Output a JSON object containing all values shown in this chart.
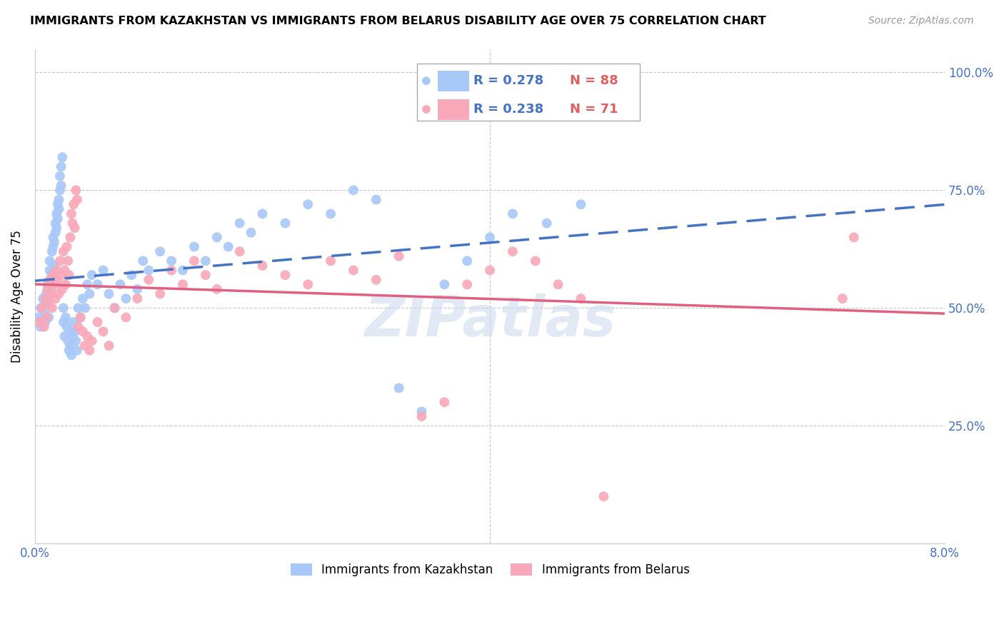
{
  "title": "IMMIGRANTS FROM KAZAKHSTAN VS IMMIGRANTS FROM BELARUS DISABILITY AGE OVER 75 CORRELATION CHART",
  "source": "Source: ZipAtlas.com",
  "ylabel": "Disability Age Over 75",
  "xmin": 0.0,
  "xmax": 0.08,
  "ymin": 0.0,
  "ymax": 1.05,
  "yticks": [
    0.0,
    0.25,
    0.5,
    0.75,
    1.0
  ],
  "ytick_labels": [
    "",
    "25.0%",
    "50.0%",
    "75.0%",
    "100.0%"
  ],
  "xticks": [
    0.0,
    0.02,
    0.04,
    0.06,
    0.08
  ],
  "xtick_labels": [
    "0.0%",
    "",
    "",
    "",
    "8.0%"
  ],
  "kazakhstan_color": "#a8c8f8",
  "belarus_color": "#f8a8b8",
  "kazakhstan_line_color": "#4472C4",
  "belarus_line_color": "#E06080",
  "R_kaz": 0.278,
  "N_kaz": 88,
  "R_bel": 0.238,
  "N_bel": 71,
  "kazakhstan_x": [
    0.0003,
    0.0005,
    0.0005,
    0.0007,
    0.0008,
    0.0009,
    0.001,
    0.001,
    0.0011,
    0.0012,
    0.0013,
    0.0013,
    0.0014,
    0.0014,
    0.0015,
    0.0015,
    0.0016,
    0.0016,
    0.0017,
    0.0017,
    0.0018,
    0.0018,
    0.0019,
    0.0019,
    0.002,
    0.002,
    0.0021,
    0.0021,
    0.0022,
    0.0022,
    0.0023,
    0.0023,
    0.0024,
    0.0025,
    0.0025,
    0.0026,
    0.0027,
    0.0028,
    0.0029,
    0.003,
    0.003,
    0.0031,
    0.0032,
    0.0033,
    0.0034,
    0.0035,
    0.0036,
    0.0037,
    0.0038,
    0.004,
    0.0042,
    0.0044,
    0.0046,
    0.0048,
    0.005,
    0.0055,
    0.006,
    0.0065,
    0.007,
    0.0075,
    0.008,
    0.0085,
    0.009,
    0.0095,
    0.01,
    0.011,
    0.012,
    0.013,
    0.014,
    0.015,
    0.016,
    0.017,
    0.018,
    0.019,
    0.02,
    0.022,
    0.024,
    0.026,
    0.028,
    0.03,
    0.032,
    0.034,
    0.036,
    0.038,
    0.04,
    0.042,
    0.045,
    0.048
  ],
  "kazakhstan_y": [
    0.48,
    0.5,
    0.46,
    0.52,
    0.49,
    0.47,
    0.53,
    0.51,
    0.55,
    0.48,
    0.6,
    0.58,
    0.56,
    0.54,
    0.62,
    0.57,
    0.65,
    0.63,
    0.59,
    0.64,
    0.68,
    0.66,
    0.7,
    0.67,
    0.72,
    0.69,
    0.73,
    0.71,
    0.75,
    0.78,
    0.76,
    0.8,
    0.82,
    0.5,
    0.47,
    0.44,
    0.48,
    0.46,
    0.43,
    0.41,
    0.45,
    0.42,
    0.4,
    0.44,
    0.47,
    0.45,
    0.43,
    0.41,
    0.5,
    0.48,
    0.52,
    0.5,
    0.55,
    0.53,
    0.57,
    0.55,
    0.58,
    0.53,
    0.5,
    0.55,
    0.52,
    0.57,
    0.54,
    0.6,
    0.58,
    0.62,
    0.6,
    0.58,
    0.63,
    0.6,
    0.65,
    0.63,
    0.68,
    0.66,
    0.7,
    0.68,
    0.72,
    0.7,
    0.75,
    0.73,
    0.33,
    0.28,
    0.55,
    0.6,
    0.65,
    0.7,
    0.68,
    0.72
  ],
  "belarus_x": [
    0.0004,
    0.0006,
    0.0008,
    0.0009,
    0.001,
    0.0011,
    0.0012,
    0.0013,
    0.0014,
    0.0015,
    0.0016,
    0.0017,
    0.0018,
    0.0019,
    0.002,
    0.0021,
    0.0022,
    0.0023,
    0.0024,
    0.0025,
    0.0026,
    0.0027,
    0.0028,
    0.0029,
    0.003,
    0.0031,
    0.0032,
    0.0033,
    0.0034,
    0.0035,
    0.0036,
    0.0037,
    0.0038,
    0.004,
    0.0042,
    0.0044,
    0.0046,
    0.0048,
    0.005,
    0.0055,
    0.006,
    0.0065,
    0.007,
    0.008,
    0.009,
    0.01,
    0.011,
    0.012,
    0.013,
    0.014,
    0.015,
    0.016,
    0.018,
    0.02,
    0.022,
    0.024,
    0.026,
    0.028,
    0.03,
    0.032,
    0.034,
    0.036,
    0.038,
    0.04,
    0.042,
    0.044,
    0.046,
    0.048,
    0.05,
    0.071,
    0.072
  ],
  "belarus_y": [
    0.47,
    0.5,
    0.46,
    0.52,
    0.48,
    0.54,
    0.51,
    0.56,
    0.53,
    0.5,
    0.57,
    0.55,
    0.52,
    0.58,
    0.56,
    0.53,
    0.6,
    0.57,
    0.54,
    0.62,
    0.58,
    0.55,
    0.63,
    0.6,
    0.57,
    0.65,
    0.7,
    0.68,
    0.72,
    0.67,
    0.75,
    0.73,
    0.46,
    0.48,
    0.45,
    0.42,
    0.44,
    0.41,
    0.43,
    0.47,
    0.45,
    0.42,
    0.5,
    0.48,
    0.52,
    0.56,
    0.53,
    0.58,
    0.55,
    0.6,
    0.57,
    0.54,
    0.62,
    0.59,
    0.57,
    0.55,
    0.6,
    0.58,
    0.56,
    0.61,
    0.27,
    0.3,
    0.55,
    0.58,
    0.62,
    0.6,
    0.55,
    0.52,
    0.1,
    0.52,
    0.65
  ],
  "watermark": "ZIPatlas",
  "figsize": [
    14.06,
    8.92
  ],
  "dpi": 100
}
